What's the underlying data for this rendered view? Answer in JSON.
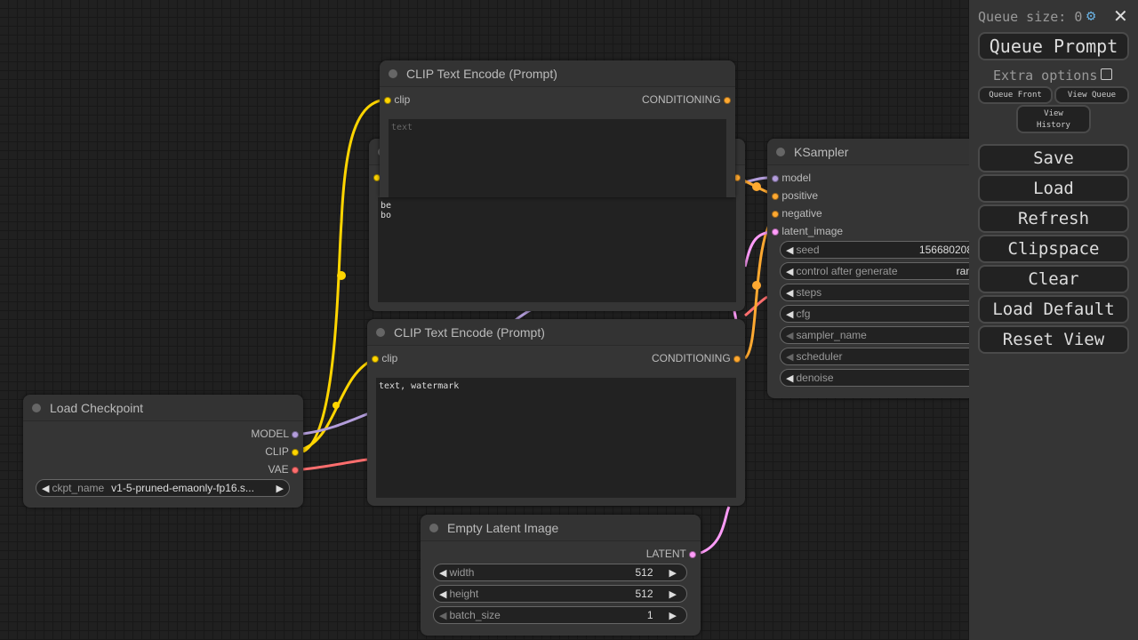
{
  "colors": {
    "clip": "#ffd500",
    "conditioning": "#ffa931",
    "model": "#b39ddb",
    "vae": "#ff6e6e",
    "latent": "#ff9cf9"
  },
  "nodes": {
    "clip_top": {
      "title": "CLIP Text Encode (Prompt)",
      "input": "clip",
      "output": "CONDITIONING",
      "text_placeholder": "text",
      "text": ""
    },
    "clip_hidden": {
      "text_line1": "be",
      "text_line2": "bo"
    },
    "clip_neg": {
      "title": "CLIP Text Encode (Prompt)",
      "input": "clip",
      "output": "CONDITIONING",
      "text": "text, watermark"
    },
    "ksampler": {
      "title": "KSampler",
      "inputs": [
        "model",
        "positive",
        "negative",
        "latent_image"
      ],
      "widgets": [
        {
          "label": "seed",
          "value": "156680208"
        },
        {
          "label": "control after generate",
          "value": "ran"
        },
        {
          "label": "steps",
          "value": ""
        },
        {
          "label": "cfg",
          "value": ""
        },
        {
          "label": "sampler_name",
          "value": ""
        },
        {
          "label": "scheduler",
          "value": ""
        },
        {
          "label": "denoise",
          "value": ""
        }
      ]
    },
    "checkpoint": {
      "title": "Load Checkpoint",
      "outputs": [
        "MODEL",
        "CLIP",
        "VAE"
      ],
      "widget": {
        "label": "ckpt_name",
        "value": "v1-5-pruned-emaonly-fp16.s..."
      }
    },
    "latent": {
      "title": "Empty Latent Image",
      "output": "LATENT",
      "widgets": [
        {
          "label": "width",
          "value": "512"
        },
        {
          "label": "height",
          "value": "512"
        },
        {
          "label": "batch_size",
          "value": "1"
        }
      ]
    }
  },
  "panel": {
    "queue_size_label": "Queue size: 0",
    "settings_icon": "gear-icon",
    "close_icon": "close-icon",
    "queue_prompt": "Queue Prompt",
    "extra_options": "Extra options",
    "extra_options_checked": false,
    "queue_front": "Queue Front",
    "view_queue": "View Queue",
    "view_history_1": "View",
    "view_history_2": "History",
    "buttons": [
      "Save",
      "Load",
      "Refresh",
      "Clipspace",
      "Clear",
      "Load Default",
      "Reset View"
    ]
  }
}
